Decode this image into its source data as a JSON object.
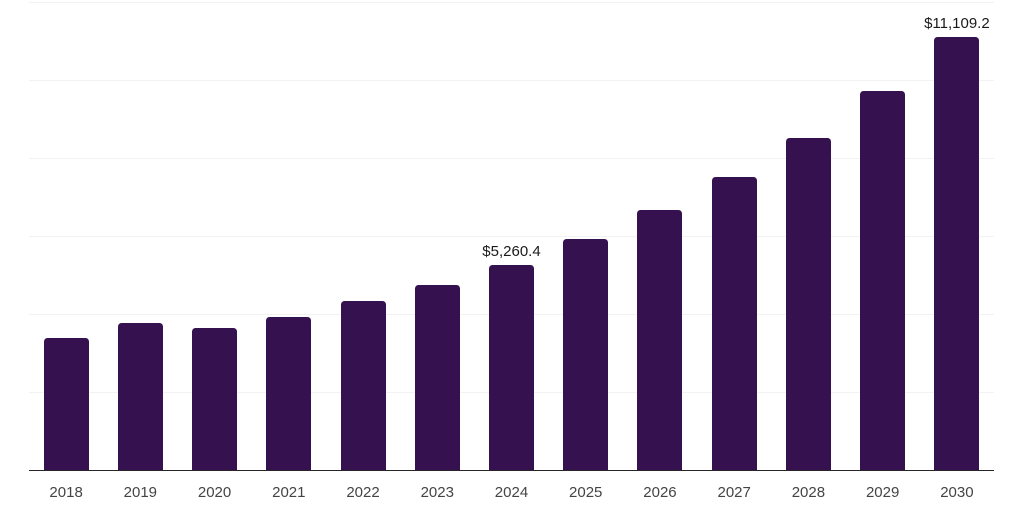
{
  "chart_data": {
    "type": "bar",
    "title": "",
    "xlabel": "",
    "ylabel": "",
    "categories": [
      "2018",
      "2019",
      "2020",
      "2021",
      "2022",
      "2023",
      "2024",
      "2025",
      "2026",
      "2027",
      "2028",
      "2029",
      "2030"
    ],
    "values": [
      3400,
      3775,
      3660,
      3945,
      4345,
      4760,
      5260.4,
      5935,
      6675,
      7510,
      8530,
      9735,
      11109.2
    ],
    "value_labels": [
      "",
      "",
      "",
      "",
      "",
      "",
      "$5,260.4",
      "",
      "",
      "",
      "",
      "",
      "$11,109.2"
    ],
    "ylim": [
      0,
      12000
    ],
    "grid_step": 2000,
    "grid": "horizontal lines only, no y-axis tick labels",
    "legend": "none",
    "colors": {
      "bar": "#351150",
      "grid_line": "#f2f2f2",
      "axis_line": "#262626",
      "tick_label": "#444444",
      "value_label": "#1a1a1a",
      "background": "#ffffff"
    }
  }
}
